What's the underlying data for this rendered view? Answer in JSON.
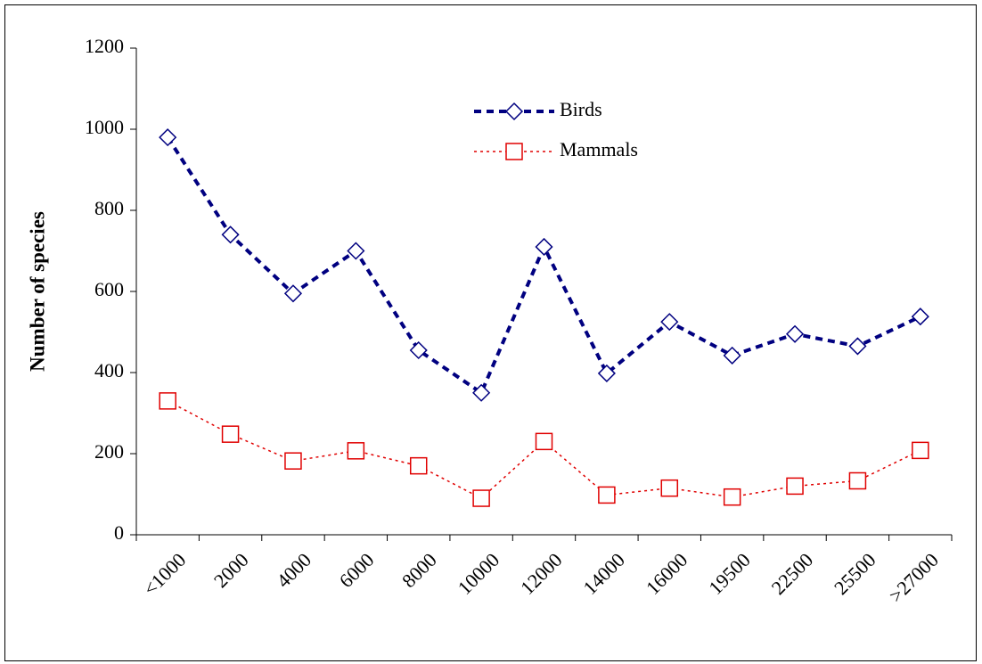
{
  "chart_data": {
    "type": "line",
    "ylabel": "Number of species",
    "categories": [
      "<1000",
      "2000",
      "4000",
      "6000",
      "8000",
      "10000",
      "12000",
      "14000",
      "16000",
      "19500",
      "22500",
      "25500",
      ">27000"
    ],
    "series": [
      {
        "name": "Birds",
        "color": "#000080",
        "marker": "diamond",
        "dash": "8 6",
        "width": 4,
        "values": [
          980,
          740,
          595,
          700,
          455,
          350,
          710,
          398,
          525,
          442,
          495,
          465,
          538
        ]
      },
      {
        "name": "Mammals",
        "color": "#e00000",
        "marker": "square",
        "dash": "3 4",
        "width": 1.5,
        "values": [
          330,
          248,
          182,
          207,
          170,
          90,
          230,
          98,
          115,
          93,
          120,
          133,
          208
        ]
      }
    ],
    "ylim": [
      0,
      1200
    ],
    "yticks": [
      0,
      200,
      400,
      600,
      800,
      1000,
      1200
    ],
    "grid": false
  }
}
